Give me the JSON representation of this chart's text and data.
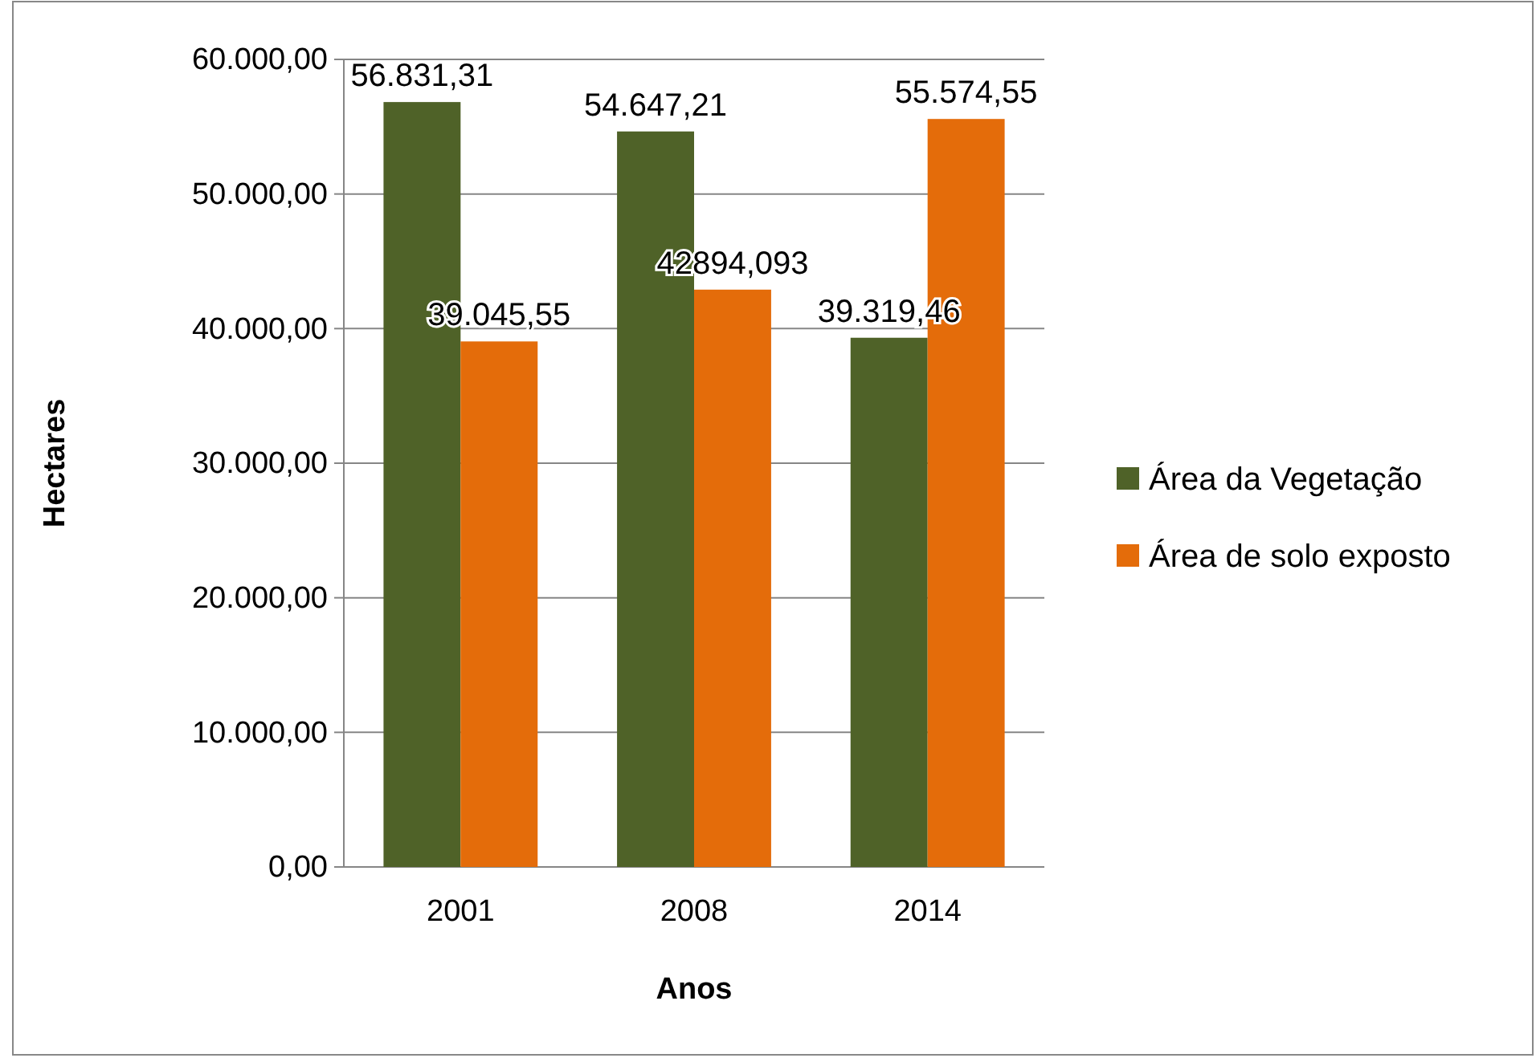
{
  "chart_data": {
    "type": "bar",
    "xlabel": "Anos",
    "ylabel": "Hectares",
    "categories": [
      "2001",
      "2008",
      "2014"
    ],
    "series": [
      {
        "name": "Área da Vegetação",
        "color": "#4f6228",
        "values": [
          56831.31,
          54647.21,
          39319.46
        ],
        "value_labels": [
          "56.831,31",
          "54.647,21",
          "39.319,46"
        ]
      },
      {
        "name": "Área de solo exposto",
        "color": "#e46c0a",
        "values": [
          39045.55,
          42894.093,
          55574.55
        ],
        "value_labels": [
          "39.045,55",
          "42894,093",
          "55.574,55"
        ]
      }
    ],
    "ylim": [
      0,
      60000
    ],
    "yticks": [
      {
        "value": 0,
        "label": "0,00"
      },
      {
        "value": 10000,
        "label": "10.000,00"
      },
      {
        "value": 20000,
        "label": "20.000,00"
      },
      {
        "value": 30000,
        "label": "30.000,00"
      },
      {
        "value": 40000,
        "label": "40.000,00"
      },
      {
        "value": 50000,
        "label": "50.000,00"
      },
      {
        "value": 60000,
        "label": "60.000,00"
      }
    ],
    "grid": "y",
    "legend": "right"
  }
}
